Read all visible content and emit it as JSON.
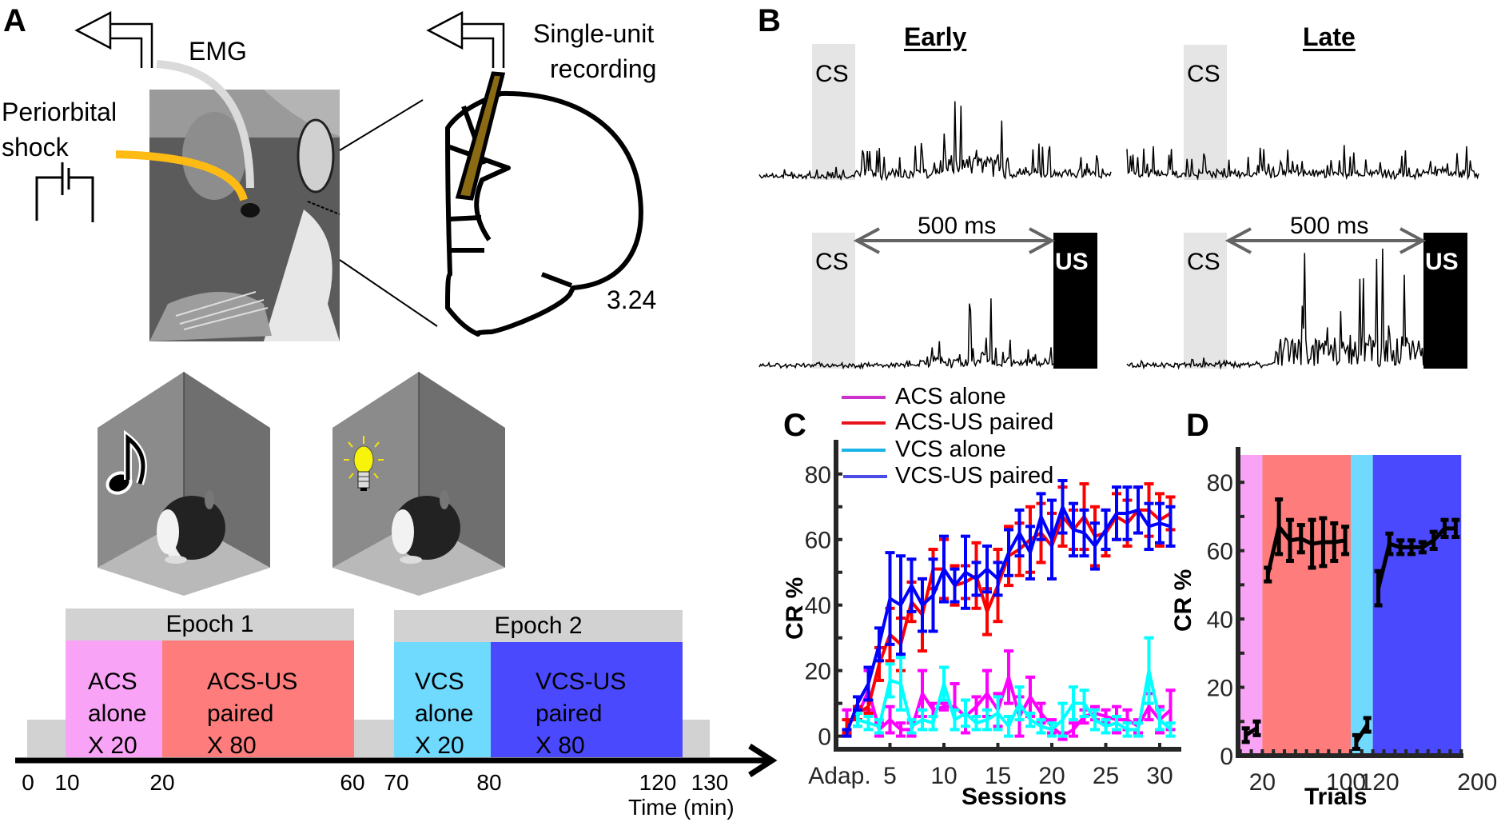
{
  "panels": {
    "A": {
      "label": "A",
      "emg_label": "EMG",
      "shock_label_line1": "Periorbital",
      "shock_label_line2": "shock",
      "recording_label_line1": "Single-unit",
      "recording_label_line2": "recording",
      "section_coordinate": "3.24",
      "chamber_left_icon": "music-note-icon",
      "chamber_right_icon": "light-bulb-icon",
      "timeline": {
        "axis_label": "Time (min)",
        "ticks": [
          "0",
          "10",
          "20",
          "60",
          "70",
          "80",
          "120",
          "130"
        ],
        "epochs": [
          {
            "title": "Epoch 1",
            "blocks": [
              {
                "line1": "ACS",
                "line2": "alone",
                "line3": "X 20",
                "color": "#f9a3f7"
              },
              {
                "line1": "ACS-US",
                "line2": "paired",
                "line3": "X 80",
                "color": "#fe7d7c"
              }
            ]
          },
          {
            "title": "Epoch 2",
            "blocks": [
              {
                "line1": "VCS",
                "line2": "alone",
                "line3": "X 20",
                "color": "#6fd9fe"
              },
              {
                "line1": "VCS-US",
                "line2": "paired",
                "line3": "X 80",
                "color": "#4a49fe"
              }
            ]
          }
        ],
        "baseline_color": "#d3d2d3"
      }
    },
    "B": {
      "label": "B",
      "col_early": "Early",
      "col_late": "Late",
      "cs_label": "CS",
      "us_label": "US",
      "interval_label": "500 ms"
    },
    "C": {
      "label": "C"
    },
    "D": {
      "label": "D"
    }
  },
  "chart_data": [
    {
      "type": "line",
      "panel": "C",
      "title": "",
      "xlabel": "Sessions",
      "ylabel": "CR %",
      "x_tick_labels": [
        "Adap.",
        "5",
        "10",
        "15",
        "20",
        "25",
        "30"
      ],
      "x_tick_values": [
        1,
        5,
        10,
        15,
        20,
        25,
        30
      ],
      "y_tick_labels": [
        "0",
        "20",
        "40",
        "60",
        "80"
      ],
      "ylim": [
        -4,
        88
      ],
      "xlim": [
        0,
        32
      ],
      "legend": [
        "ACS alone",
        "ACS-US paired",
        "VCS alone",
        "VCS-US paired"
      ],
      "legend_position": "top",
      "error_bars": true,
      "series": [
        {
          "name": "ACS alone",
          "color": "#ff00ff",
          "x": [
            1,
            2,
            3,
            4,
            5,
            6,
            7,
            8,
            9,
            10,
            11,
            12,
            13,
            14,
            15,
            16,
            17,
            18,
            19,
            20,
            21,
            22,
            23,
            24,
            25,
            26,
            27,
            28,
            29,
            30,
            31
          ],
          "values": [
            4,
            6,
            14,
            2,
            5,
            2,
            2,
            13,
            8,
            9,
            9,
            6,
            9,
            13,
            8,
            18,
            6,
            12,
            7,
            3,
            0,
            2,
            6,
            7,
            6,
            5,
            5,
            3,
            9,
            5,
            8
          ],
          "errors": [
            4,
            3,
            6,
            2,
            4,
            2,
            2,
            7,
            2,
            1,
            7,
            5,
            3,
            7,
            5,
            8,
            6,
            6,
            3,
            2,
            1,
            2,
            2,
            2,
            2,
            4,
            3,
            2,
            4,
            4,
            6
          ]
        },
        {
          "name": "ACS-US paired",
          "color": "#ff0000",
          "x": [
            1,
            2,
            3,
            4,
            5,
            6,
            7,
            8,
            9,
            10,
            11,
            12,
            13,
            14,
            15,
            16,
            17,
            18,
            19,
            20,
            21,
            22,
            23,
            24,
            25,
            26,
            27,
            28,
            29,
            30,
            31
          ],
          "values": [
            3,
            7,
            9,
            22,
            31,
            28,
            41,
            37,
            51,
            51,
            46,
            47,
            49,
            38,
            46,
            55,
            57,
            60,
            62,
            58,
            67,
            63,
            67,
            61,
            62,
            67,
            65,
            69,
            69,
            66,
            68
          ],
          "errors": [
            2,
            2,
            2,
            5,
            8,
            8,
            6,
            11,
            6,
            9,
            6,
            5,
            10,
            7,
            11,
            9,
            8,
            10,
            9,
            10,
            9,
            6,
            10,
            9,
            7,
            7,
            7,
            7,
            8,
            8,
            5
          ]
        },
        {
          "name": "VCS alone",
          "color": "#00ffff",
          "x": [
            2,
            3,
            4,
            5,
            6,
            7,
            8,
            9,
            10,
            11,
            12,
            13,
            14,
            15,
            16,
            17,
            18,
            19,
            20,
            21,
            22,
            23,
            24,
            25,
            26,
            27,
            28,
            29,
            30,
            31
          ],
          "values": [
            5,
            4,
            3,
            17,
            16,
            3,
            5,
            4,
            16,
            5,
            7,
            4,
            5,
            7,
            3,
            10,
            5,
            3,
            2,
            5,
            10,
            10,
            5,
            3,
            4,
            2,
            2,
            20,
            5,
            2
          ],
          "errors": [
            2,
            2,
            2,
            5,
            8,
            2,
            3,
            2,
            5,
            3,
            4,
            2,
            3,
            5,
            3,
            5,
            2,
            2,
            2,
            5,
            5,
            4,
            3,
            2,
            2,
            2,
            2,
            10,
            3,
            2
          ]
        },
        {
          "name": "VCS-US paired",
          "color": "#0000ff",
          "x": [
            1,
            2,
            3,
            4,
            5,
            6,
            7,
            8,
            9,
            10,
            11,
            12,
            13,
            14,
            15,
            16,
            17,
            18,
            19,
            20,
            21,
            22,
            23,
            24,
            25,
            26,
            27,
            28,
            29,
            30,
            31
          ],
          "values": [
            1,
            10,
            16,
            28,
            42,
            40,
            46,
            40,
            43,
            51,
            46,
            50,
            48,
            51,
            48,
            56,
            62,
            56,
            67,
            60,
            70,
            63,
            62,
            58,
            63,
            68,
            68,
            69,
            64,
            65,
            64
          ],
          "errors": [
            1,
            2,
            5,
            5,
            14,
            15,
            8,
            8,
            11,
            10,
            5,
            11,
            5,
            7,
            5,
            7,
            7,
            8,
            7,
            12,
            8,
            8,
            7,
            7,
            6,
            8,
            8,
            7,
            7,
            6,
            6
          ]
        }
      ]
    },
    {
      "type": "line",
      "panel": "D",
      "title": "",
      "xlabel": "Trials",
      "ylabel": "CR %",
      "x_tick_labels": [
        "20",
        "100",
        "120",
        "200"
      ],
      "y_tick_labels": [
        "0",
        "20",
        "40",
        "60",
        "80"
      ],
      "ylim": [
        0,
        88
      ],
      "error_bars": true,
      "background_bands": [
        {
          "name": "ACS alone",
          "from": 0,
          "to": 20,
          "color": "#f9a3f7"
        },
        {
          "name": "ACS-US paired",
          "from": 20,
          "to": 100,
          "color": "#fe7d7c"
        },
        {
          "name": "VCS alone",
          "from": 100,
          "to": 120,
          "color": "#6fd9fe"
        },
        {
          "name": "VCS-US paired",
          "from": 120,
          "to": 200,
          "color": "#4a49fe"
        }
      ],
      "series": [
        {
          "name": "ACS alone",
          "color": "#000000",
          "x": [
            5,
            15
          ],
          "values": [
            6,
            8
          ],
          "errors": [
            2,
            2
          ]
        },
        {
          "name": "ACS-US paired",
          "color": "#000000",
          "x": [
            25,
            35,
            45,
            55,
            65,
            75,
            85,
            95
          ],
          "values": [
            53,
            67,
            63,
            63.5,
            62,
            62.5,
            62.5,
            63
          ],
          "errors": [
            2,
            8,
            6,
            4,
            7,
            7,
            5.5,
            4
          ]
        },
        {
          "name": "VCS alone",
          "color": "#000000",
          "x": [
            105,
            115
          ],
          "values": [
            4,
            9
          ],
          "errors": [
            2,
            2
          ]
        },
        {
          "name": "VCS-US paired",
          "color": "#000000",
          "x": [
            125,
            135,
            145,
            155,
            165,
            175,
            185,
            195
          ],
          "values": [
            49,
            62,
            61,
            61,
            61,
            63,
            66.5,
            66.5
          ],
          "errors": [
            5,
            3,
            2,
            2,
            1.5,
            2.5,
            2.5,
            2.5
          ]
        }
      ]
    }
  ]
}
